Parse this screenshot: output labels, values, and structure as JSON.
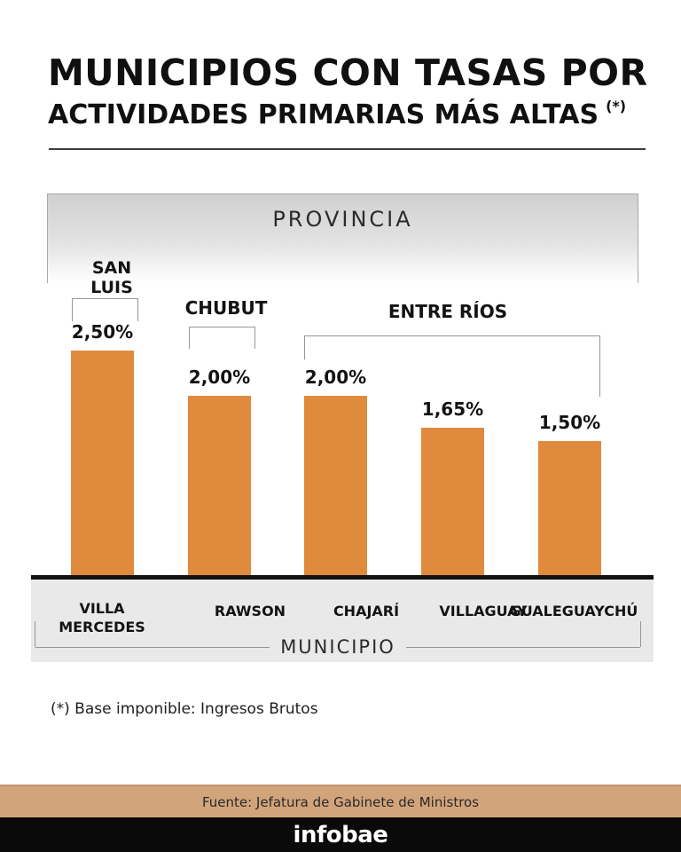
{
  "header": {
    "title_line1": "MUNICIPIOS CON TASAS POR",
    "title_line2": "ACTIVIDADES PRIMARIAS MÁS ALTAS",
    "title_superscript": "(*)"
  },
  "chart_data": {
    "type": "bar",
    "title": "MUNICIPIOS CON TASAS POR ACTIVIDADES PRIMARIAS MÁS ALTAS (*)",
    "group_label": "PROVINCIA",
    "xlabel": "MUNICIPIO",
    "categories": [
      "VILLA MERCEDES",
      "RAWSON",
      "CHAJARÍ",
      "VILLAGUAY",
      "GUALEGUAYCHÚ"
    ],
    "values": [
      2.5,
      2.0,
      2.0,
      1.65,
      1.5
    ],
    "value_labels": [
      "2,50%",
      "2,00%",
      "2,00%",
      "1,65%",
      "1,50%"
    ],
    "unit": "%",
    "ylim": [
      0,
      2.5
    ],
    "grid": false,
    "legend": "none",
    "bar_color": "#E08A3D",
    "groups": [
      {
        "province": "SAN LUIS",
        "municipalities": [
          "VILLA MERCEDES"
        ]
      },
      {
        "province": "CHUBUT",
        "municipalities": [
          "RAWSON"
        ]
      },
      {
        "province": "ENTRE RÍOS",
        "municipalities": [
          "CHAJARÍ",
          "VILLAGUAY",
          "GUALEGUAYCHÚ"
        ]
      }
    ]
  },
  "footnote": "(*) Base imponible: Ingresos Brutos",
  "footer": {
    "source": "Fuente: Jefatura de Gabinete de Ministros",
    "brand": "infobae"
  },
  "colors": {
    "bar": "#E08A3D",
    "source_band": "#D2A47B",
    "brand_band": "#0A0A0A",
    "axis_box_gray": "#E9E9E9"
  }
}
